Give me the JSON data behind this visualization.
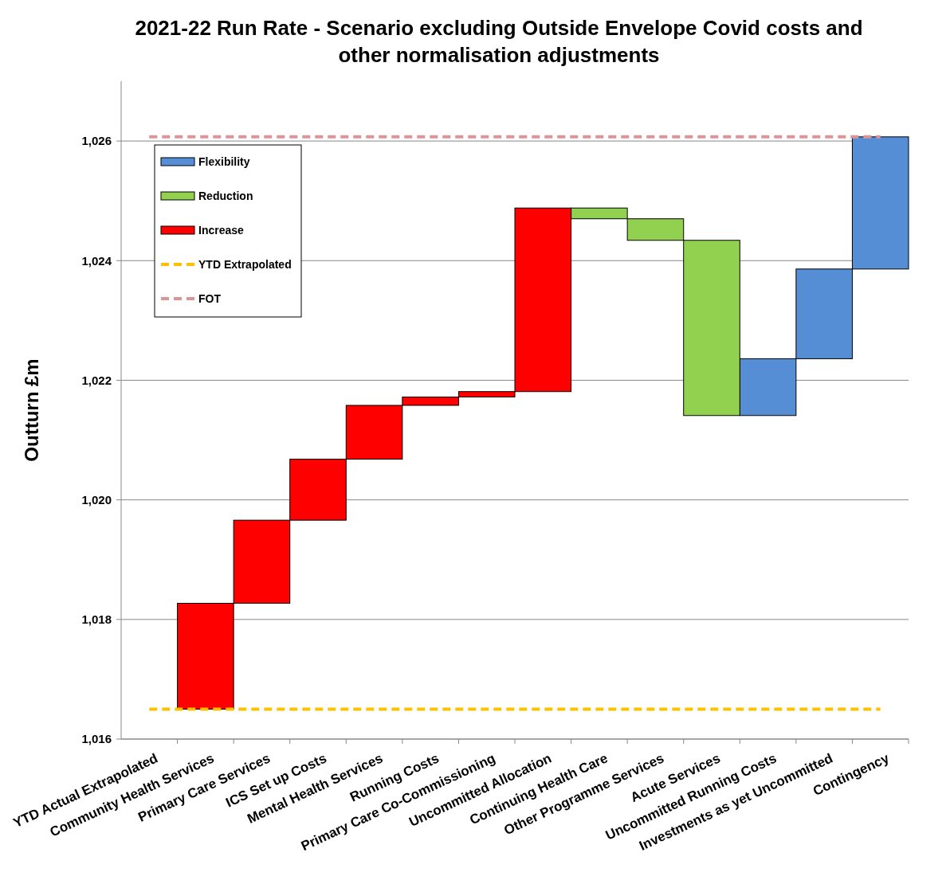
{
  "chart_data": {
    "type": "bar",
    "title": "2021-22 Run Rate - Scenario excluding Outside Envelope Covid costs and other normalisation adjustments",
    "ylabel": "Outturn £m",
    "categories": [
      "YTD Actual Extrapolated",
      "Community Health Services",
      "Primary Care Services",
      "ICS Set up Costs",
      "Mental Health Services",
      "Running Costs",
      "Primary Care Co-Commissioning",
      "Uncommitted Allocation",
      "Continuing Health Care",
      "Other Programme Services",
      "Acute Services",
      "Uncommitted Running Costs",
      "Investments as yet Uncommitted",
      "Contingency"
    ],
    "series": [
      {
        "name": "Flexibility",
        "color": "#558ed5",
        "base": [
          null,
          null,
          null,
          null,
          null,
          null,
          null,
          null,
          null,
          null,
          null,
          1021.41,
          1022.36,
          1023.86
        ],
        "values": [
          null,
          null,
          null,
          null,
          null,
          null,
          null,
          null,
          null,
          null,
          null,
          0.95,
          1.5,
          2.21
        ]
      },
      {
        "name": "Reduction",
        "color": "#92d050",
        "base": [
          null,
          null,
          null,
          null,
          null,
          null,
          null,
          null,
          1024.88,
          1024.7,
          1024.34,
          null,
          null,
          null
        ],
        "values": [
          null,
          null,
          null,
          null,
          null,
          null,
          null,
          null,
          -0.18,
          -0.36,
          -2.93,
          null,
          null,
          null
        ]
      },
      {
        "name": "Increase",
        "color": "#ff0000",
        "base": [
          null,
          1016.5,
          1018.27,
          1019.66,
          1020.68,
          1021.58,
          1021.72,
          1021.81,
          null,
          null,
          null,
          null,
          null,
          null
        ],
        "values": [
          null,
          1.77,
          1.39,
          1.02,
          0.9,
          0.14,
          0.09,
          3.07,
          null,
          null,
          null,
          null,
          null,
          null
        ]
      }
    ],
    "ref_lines": [
      {
        "axis": "y",
        "value": 1016.5,
        "label": "YTD Extrapolated",
        "color": "#ffc000",
        "line_style": "dashed"
      },
      {
        "axis": "y",
        "value": 1026.07,
        "label": "FOT",
        "color": "#d99694",
        "line_style": "dashed"
      }
    ],
    "ylim": [
      1016,
      1027
    ],
    "yticks": [
      {
        "value": 1016,
        "label": "1,016"
      },
      {
        "value": 1018,
        "label": "1,018"
      },
      {
        "value": 1020,
        "label": "1,020"
      },
      {
        "value": 1022,
        "label": "1,022"
      },
      {
        "value": 1024,
        "label": "1,024"
      },
      {
        "value": 1026,
        "label": "1,026"
      }
    ],
    "grid": "y",
    "legend": "top left"
  }
}
